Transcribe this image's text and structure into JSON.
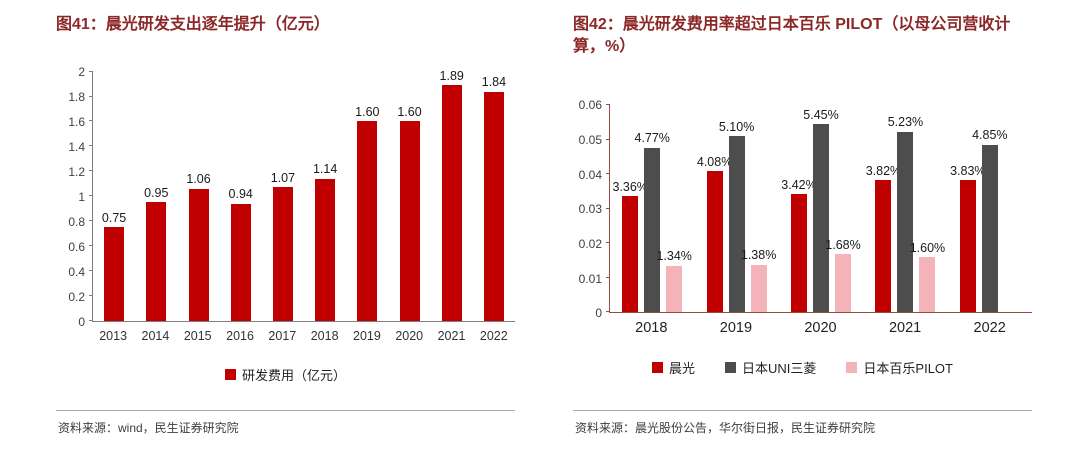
{
  "chart_data": [
    {
      "id": "chart41",
      "type": "bar",
      "title": "图41：晨光研发支出逐年提升（亿元）",
      "categories": [
        "2013",
        "2014",
        "2015",
        "2016",
        "2017",
        "2018",
        "2019",
        "2020",
        "2021",
        "2022"
      ],
      "series": [
        {
          "name": "研发费用（亿元）",
          "color": "#c00000",
          "values": [
            0.75,
            0.95,
            1.06,
            0.94,
            1.07,
            1.14,
            1.6,
            1.6,
            1.89,
            1.84
          ],
          "labels": [
            "0.75",
            "0.95",
            "1.06",
            "0.94",
            "1.07",
            "1.14",
            "1.60",
            "1.60",
            "1.89",
            "1.84"
          ]
        }
      ],
      "ylim": [
        0,
        2
      ],
      "yticks": [
        "0",
        "0.2",
        "0.4",
        "0.6",
        "0.8",
        "1",
        "1.2",
        "1.4",
        "1.6",
        "1.8",
        "2"
      ],
      "grid": false,
      "legend_position": "bottom",
      "source": "资料来源：wind，民生证券研究院"
    },
    {
      "id": "chart42",
      "type": "bar",
      "title": "图42：晨光研发费用率超过日本百乐 PILOT（以母公司营收计算，%）",
      "categories": [
        "2018",
        "2019",
        "2020",
        "2021",
        "2022"
      ],
      "series": [
        {
          "name": "晨光",
          "color": "#c00000",
          "values": [
            0.0336,
            0.0408,
            0.0342,
            0.0382,
            0.0383
          ],
          "labels": [
            "3.36%",
            "4.08%",
            "3.42%",
            "3.82%",
            "3.83%"
          ]
        },
        {
          "name": "日本UNI三菱",
          "color": "#4d4d4d",
          "values": [
            0.0477,
            0.051,
            0.0545,
            0.0523,
            0.0485
          ],
          "labels": [
            "4.77%",
            "5.10%",
            "5.45%",
            "5.23%",
            "4.85%"
          ]
        },
        {
          "name": "日本百乐PILOT",
          "color": "#f3b3b9",
          "values": [
            0.0134,
            0.0138,
            0.0168,
            0.016,
            null
          ],
          "labels": [
            "1.34%",
            "1.38%",
            "1.68%",
            "1.60%",
            ""
          ]
        }
      ],
      "ylim": [
        0,
        0.06
      ],
      "yticks": [
        "0",
        "0.01",
        "0.02",
        "0.03",
        "0.04",
        "0.05",
        "0.06"
      ],
      "grid": false,
      "legend_position": "bottom",
      "source": "资料来源：晨光股份公告，华尔街日报，民生证券研究院"
    }
  ],
  "colors": {
    "accent_red": "#c00000",
    "dark_gray_series": "#4d4d4d",
    "pink_series": "#f3b3b9",
    "title_red": "#8c2727"
  }
}
